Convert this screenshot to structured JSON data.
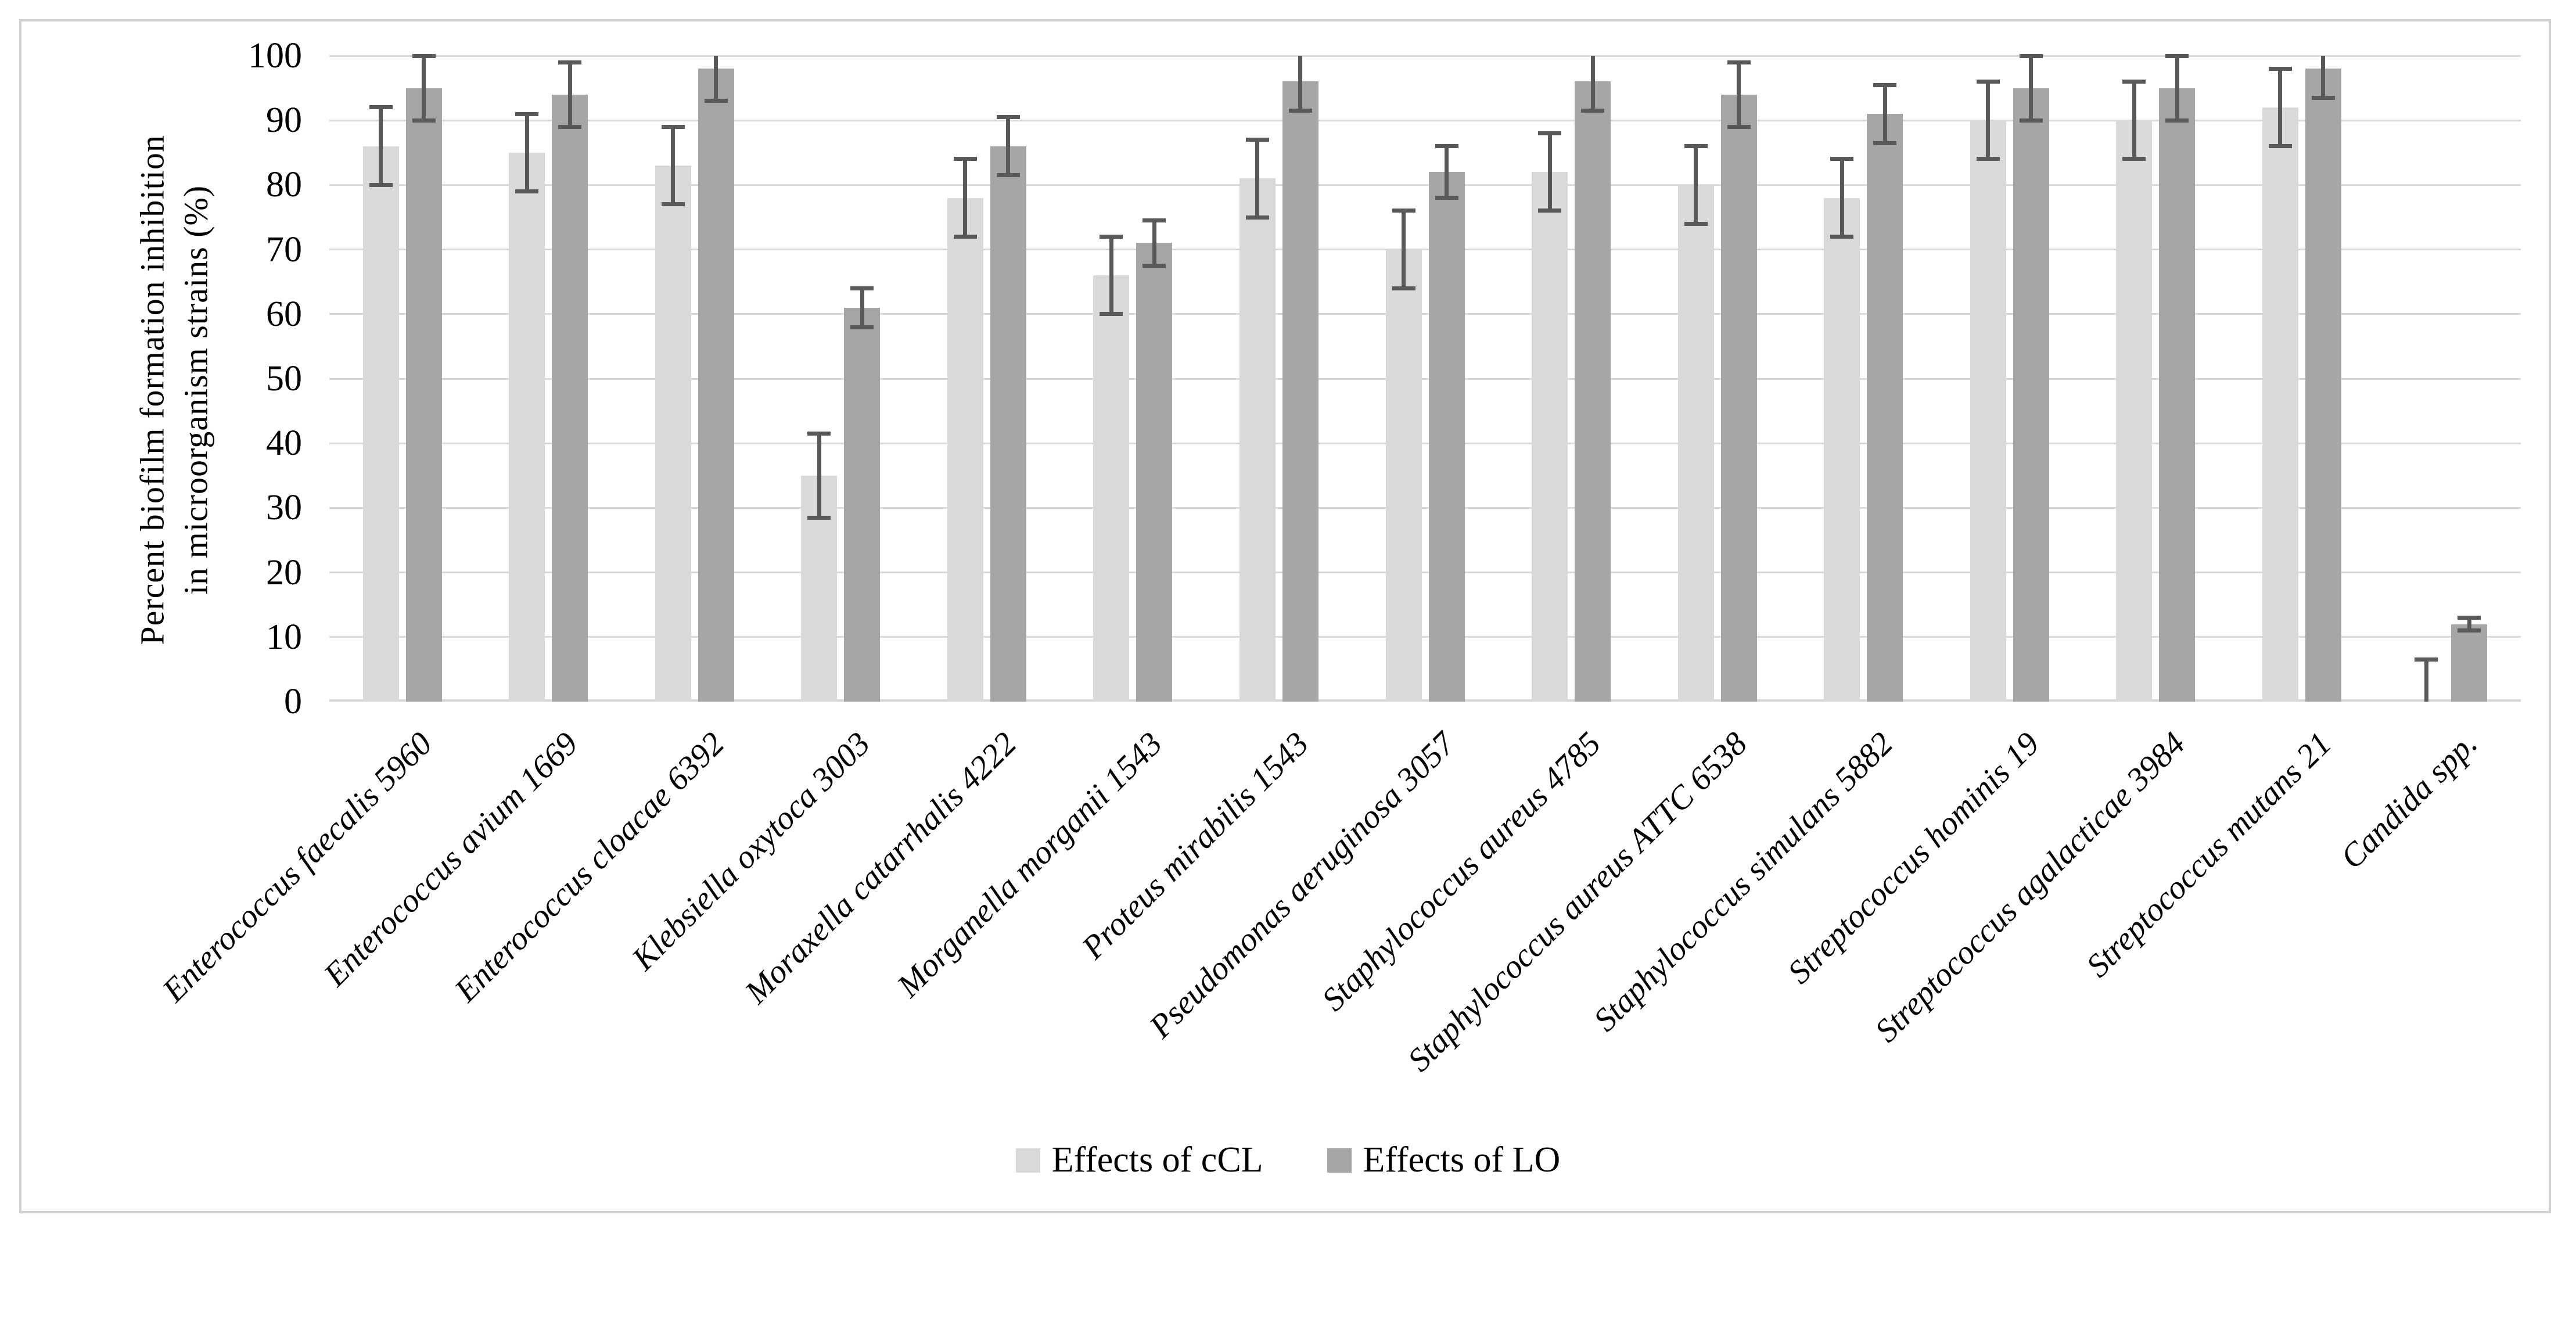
{
  "figure": {
    "y_axis_title_line1": "Percent biofilm formation inhibition",
    "y_axis_title_line2": "in microorganism strains (%)"
  },
  "colors": {
    "bar_ccl": "#d9d9d9",
    "bar_lo": "#a6a6a6",
    "error_bar": "#595959",
    "gridline": "#d9d9d9",
    "frame_border": "#d2d2d2",
    "text": "#000000"
  },
  "chart_data": {
    "type": "bar",
    "title": "",
    "xlabel": "",
    "ylabel": "Percent biofilm formation inhibition in microorganism strains (%)",
    "ylim": [
      0,
      100
    ],
    "yticks": [
      0,
      10,
      20,
      30,
      40,
      50,
      60,
      70,
      80,
      90,
      100
    ],
    "grid": true,
    "legend_position": "bottom-center",
    "x_label_rotation_deg": 45,
    "categories": [
      "Enterococcus  faecalis 5960",
      "Enterococcus avium 1669",
      "Enterococcus cloacae 6392",
      "Klebsiella oxytoca 3003",
      "Moraxella catarrhalis 4222",
      "Morganella morganii 1543",
      "Proteus mirabilis 1543",
      "Pseudomonas aeruginosa 3057",
      "Staphylococcus aureus 4785",
      "Staphylococcus aureus ATTC 6538",
      "Staphylococcus simulans 5882",
      "Streptococcus hominis 19",
      "Streptococcus agalacticae 3984",
      "Streptococcus mutans 21",
      "Candida spp."
    ],
    "series": [
      {
        "name": "Effects of cCL",
        "color": "#d9d9d9",
        "values": [
          86,
          85,
          83,
          35,
          78,
          66,
          81,
          70,
          82,
          80,
          78,
          90,
          90,
          92,
          0
        ],
        "errors": [
          6,
          6,
          6,
          6.5,
          6,
          6,
          6,
          6,
          6,
          6,
          6,
          6,
          6,
          6,
          6.5
        ]
      },
      {
        "name": "Effects of LO",
        "color": "#a6a6a6",
        "values": [
          95,
          94,
          98,
          61,
          86,
          71,
          96,
          82,
          96,
          94,
          91,
          95,
          95,
          98,
          12
        ],
        "errors": [
          5,
          5,
          5,
          3,
          4.5,
          3.5,
          4.5,
          4,
          4.5,
          5,
          4.5,
          5,
          5,
          4.5,
          1
        ]
      }
    ]
  }
}
